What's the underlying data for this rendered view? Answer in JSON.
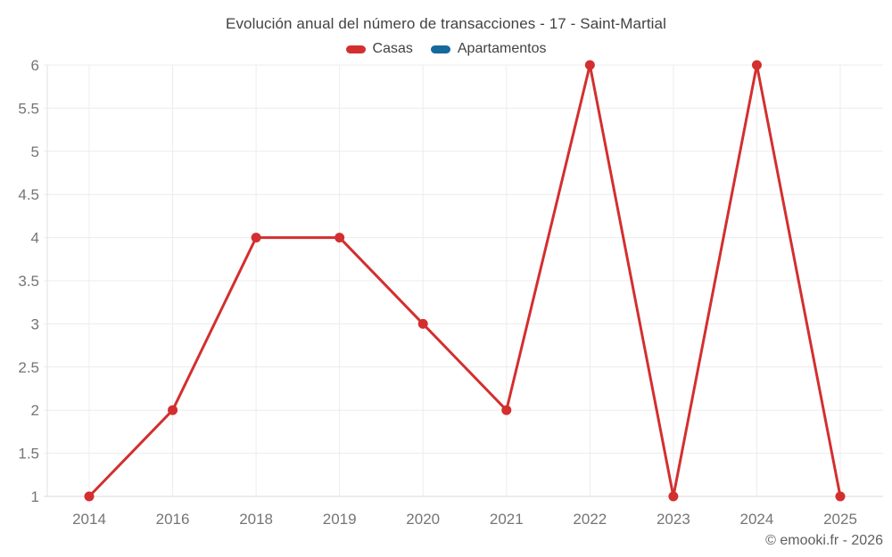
{
  "title": "Evolución anual del número de transacciones - 17 - Saint-Martial",
  "legend": {
    "items": [
      {
        "label": "Casas",
        "color": "#d32f2f"
      },
      {
        "label": "Apartamentos",
        "color": "#15699d"
      }
    ]
  },
  "watermark": "© emooki.fr - 2026",
  "colors": {
    "background": "#ffffff",
    "title_text": "#424242",
    "axis_tick_text": "#757575",
    "gridline": "#ececec",
    "axis_line": "#e0e0e0",
    "baseline": "#d9d9d9",
    "casas_red": "#d32f2f",
    "apartamentos_blue": "#15699d"
  },
  "chart_data": {
    "type": "line",
    "title": "Evolución anual del número de transacciones - 17 - Saint-Martial",
    "categories": [
      "2014",
      "2016",
      "2018",
      "2019",
      "2020",
      "2021",
      "2022",
      "2023",
      "2024",
      "2025"
    ],
    "series": [
      {
        "name": "Casas",
        "color": "#d32f2f",
        "values": [
          1,
          2,
          4,
          4,
          3,
          2,
          6,
          1,
          6,
          1
        ]
      },
      {
        "name": "Apartamentos",
        "color": "#15699d",
        "values": []
      }
    ],
    "xlabel": "",
    "ylabel": "",
    "ylim": [
      1,
      6
    ],
    "ytick_step": 0.5,
    "yticks": [
      1,
      1.5,
      2,
      2.5,
      3,
      3.5,
      4,
      4.5,
      5,
      5.5,
      6
    ],
    "grid": true,
    "legend_position": "top",
    "marker": "circle",
    "marker_radius": 5.5,
    "line_width": 3
  }
}
